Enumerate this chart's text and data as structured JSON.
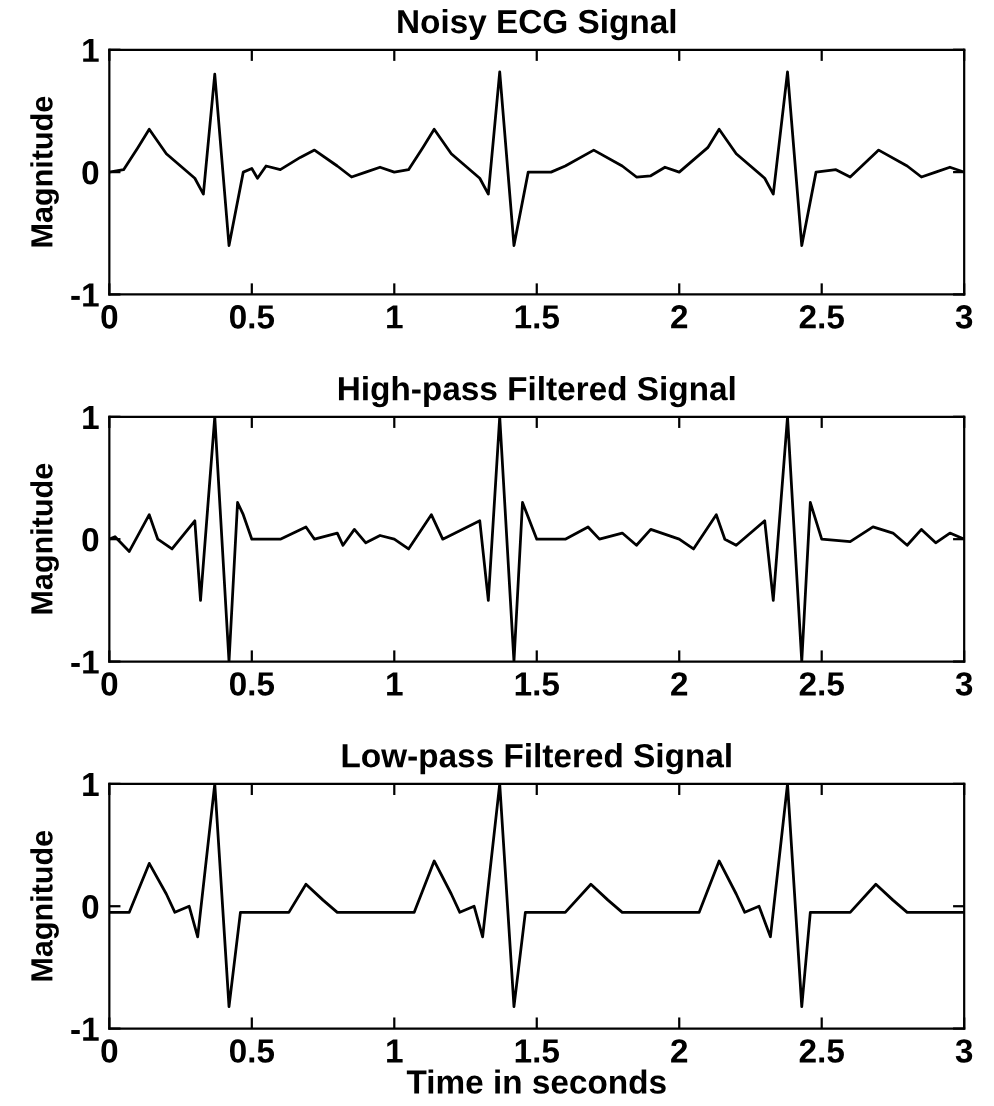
{
  "chart_data": [
    {
      "type": "line",
      "title": "Noisy ECG Signal",
      "ylabel": "Magnitude",
      "xlim": [
        0,
        3
      ],
      "ylim": [
        -1,
        1
      ],
      "xticks": [
        0,
        0.5,
        1,
        1.5,
        2,
        2.5,
        3
      ],
      "yticks": [
        -1,
        0,
        1
      ],
      "grid": false,
      "legend": false,
      "series": [
        {
          "color": "#000000",
          "x": [
            0,
            0.05,
            0.1,
            0.14,
            0.2,
            0.25,
            0.3,
            0.33,
            0.37,
            0.42,
            0.47,
            0.5,
            0.52,
            0.55,
            0.6,
            0.67,
            0.72,
            0.8,
            0.85,
            0.9,
            0.95,
            1.0,
            1.05,
            1.1,
            1.14,
            1.2,
            1.3,
            1.33,
            1.37,
            1.42,
            1.47,
            1.55,
            1.6,
            1.7,
            1.8,
            1.85,
            1.9,
            1.95,
            2.0,
            2.1,
            2.14,
            2.2,
            2.3,
            2.33,
            2.38,
            2.43,
            2.48,
            2.55,
            2.6,
            2.7,
            2.8,
            2.85,
            2.9,
            2.95,
            3.0
          ],
          "values": [
            0,
            0.02,
            0.2,
            0.35,
            0.15,
            0.05,
            -0.05,
            -0.18,
            0.8,
            -0.6,
            0.0,
            0.03,
            -0.05,
            0.05,
            0.02,
            0.12,
            0.18,
            0.05,
            -0.04,
            0.0,
            0.04,
            0.0,
            0.02,
            0.2,
            0.35,
            0.15,
            -0.05,
            -0.18,
            0.82,
            -0.6,
            0.0,
            0.0,
            0.05,
            0.18,
            0.05,
            -0.04,
            -0.03,
            0.04,
            0.0,
            0.2,
            0.35,
            0.15,
            -0.05,
            -0.18,
            0.82,
            -0.6,
            0.0,
            0.02,
            -0.04,
            0.18,
            0.05,
            -0.04,
            0.0,
            0.04,
            0.0
          ]
        }
      ]
    },
    {
      "type": "line",
      "title": "High-pass Filtered Signal",
      "ylabel": "Magnitude",
      "xlim": [
        0,
        3
      ],
      "ylim": [
        -1,
        1
      ],
      "xticks": [
        0,
        0.5,
        1,
        1.5,
        2,
        2.5,
        3
      ],
      "yticks": [
        -1,
        0,
        1
      ],
      "grid": false,
      "legend": false,
      "series": [
        {
          "color": "#000000",
          "x": [
            0,
            0.02,
            0.07,
            0.14,
            0.17,
            0.22,
            0.3,
            0.32,
            0.37,
            0.42,
            0.45,
            0.47,
            0.5,
            0.6,
            0.69,
            0.72,
            0.8,
            0.82,
            0.86,
            0.9,
            0.95,
            1.0,
            1.05,
            1.13,
            1.17,
            1.3,
            1.33,
            1.37,
            1.42,
            1.45,
            1.5,
            1.6,
            1.68,
            1.72,
            1.8,
            1.85,
            1.9,
            2.0,
            2.05,
            2.13,
            2.16,
            2.2,
            2.3,
            2.33,
            2.38,
            2.43,
            2.46,
            2.5,
            2.6,
            2.68,
            2.75,
            2.8,
            2.85,
            2.9,
            2.95,
            3.0
          ],
          "values": [
            0,
            0.02,
            -0.1,
            0.2,
            0.0,
            -0.08,
            0.15,
            -0.5,
            1.0,
            -1.0,
            0.3,
            0.2,
            0.0,
            0.0,
            0.1,
            0.0,
            0.05,
            -0.05,
            0.08,
            -0.03,
            0.03,
            0.0,
            -0.08,
            0.2,
            0.0,
            0.15,
            -0.5,
            1.0,
            -1.0,
            0.3,
            0.0,
            0.0,
            0.1,
            0.0,
            0.05,
            -0.05,
            0.08,
            0.0,
            -0.08,
            0.2,
            0.0,
            -0.05,
            0.15,
            -0.5,
            1.0,
            -1.0,
            0.3,
            0.0,
            -0.02,
            0.1,
            0.05,
            -0.05,
            0.08,
            -0.03,
            0.05,
            0.0
          ]
        }
      ]
    },
    {
      "type": "line",
      "title": "Low-pass Filtered Signal",
      "xlabel": "Time in seconds",
      "ylabel": "Magnitude",
      "xlim": [
        0,
        3
      ],
      "ylim": [
        -1,
        1
      ],
      "xticks": [
        0,
        0.5,
        1,
        1.5,
        2,
        2.5,
        3
      ],
      "yticks": [
        -1,
        0,
        1
      ],
      "grid": false,
      "legend": false,
      "series": [
        {
          "color": "#000000",
          "x": [
            0,
            0.07,
            0.14,
            0.2,
            0.23,
            0.28,
            0.31,
            0.37,
            0.42,
            0.46,
            0.55,
            0.63,
            0.69,
            0.75,
            0.8,
            0.9,
            1.0,
            1.07,
            1.14,
            1.2,
            1.23,
            1.28,
            1.31,
            1.37,
            1.42,
            1.46,
            1.6,
            1.69,
            1.75,
            1.8,
            2.0,
            2.07,
            2.14,
            2.2,
            2.23,
            2.28,
            2.32,
            2.38,
            2.43,
            2.46,
            2.6,
            2.69,
            2.75,
            2.8,
            3.0
          ],
          "values": [
            -0.05,
            -0.05,
            0.35,
            0.1,
            -0.05,
            0.0,
            -0.25,
            1.0,
            -0.82,
            -0.05,
            -0.05,
            -0.05,
            0.18,
            0.05,
            -0.05,
            -0.05,
            -0.05,
            -0.05,
            0.37,
            0.1,
            -0.05,
            0.0,
            -0.25,
            1.0,
            -0.82,
            -0.05,
            -0.05,
            0.18,
            0.05,
            -0.05,
            -0.05,
            -0.05,
            0.37,
            0.1,
            -0.05,
            0.0,
            -0.25,
            1.0,
            -0.82,
            -0.05,
            -0.05,
            0.18,
            0.05,
            -0.05,
            -0.05
          ]
        }
      ]
    }
  ]
}
